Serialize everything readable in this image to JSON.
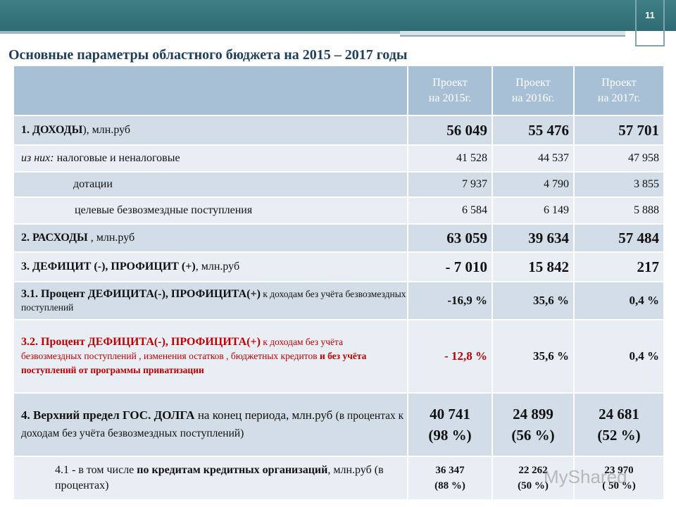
{
  "page_number": "11",
  "title": "Основные параметры областного бюджета  на 2015 – 2017 годы",
  "columns": [
    {
      "line1": "Проект",
      "line2": "на 2015г."
    },
    {
      "line1": "Проект",
      "line2": "на 2016г."
    },
    {
      "line1": "Проект",
      "line2": "на 2017г."
    }
  ],
  "rows": {
    "income": {
      "label_bold": "1. ДОХОДЫ",
      "label_rest": "), млн.руб",
      "values": [
        "56 049",
        "55 476",
        "57 701"
      ]
    },
    "tax": {
      "label_italic": "из них:",
      "label_rest": " налоговые и неналоговые",
      "values": [
        "41 528",
        "44 537",
        "47 958"
      ]
    },
    "grants": {
      "label": "дотации",
      "values": [
        "7 937",
        "4 790",
        "3 855"
      ]
    },
    "targeted": {
      "label": "целевые безвозмездные поступления",
      "values": [
        "6 584",
        "6 149",
        "5 888"
      ]
    },
    "expenses": {
      "label_bold": "2. РАСХОДЫ",
      "label_rest": " , млн.руб",
      "values": [
        "63 059",
        "39 634",
        "57 484"
      ]
    },
    "deficit": {
      "label_bold": "3. ДЕФИЦИТ (-), ПРОФИЦИТ (+)",
      "label_rest": ", млн.руб",
      "values": [
        "- 7 010",
        "15 842",
        "217"
      ]
    },
    "pct1": {
      "label_bold": "3.1. Процент ДЕФИЦИТА(-), ПРОФИЦИТА(+)",
      "label_small": " к доходам без учёта безвозмездных поступлений",
      "values": [
        "-16,9 %",
        "35,6 %",
        "0,4 %"
      ]
    },
    "pct2": {
      "label_bold": "3.2. Процент ДЕФИЦИТА(-), ПРОФИЦИТА(+)",
      "label_small": " к доходам без учёта безвозмездных поступлений , изменения остатков , бюджетных кредитов ",
      "label_bold_tail": " и без учёта поступлений от программы приватизации",
      "values": [
        "- 12,8 %",
        "35,6 %",
        "0,4 %"
      ]
    },
    "debt": {
      "label_bold": "4. Верхний предел ГОС. ДОЛГА",
      "label_rest": "  на конец периода, млн.руб ",
      "label_small": "(в процентах  к доходам без учёта безвозмездных поступлений)",
      "values": [
        [
          "40 741",
          "(98 %)"
        ],
        [
          "24 899",
          "(56 %)"
        ],
        [
          "24 681",
          "(52 %)"
        ]
      ]
    },
    "credit": {
      "label_pre": "4.1 - ",
      "label_mid": " в том числе ",
      "label_bold": "по кредитам кредитных организаций",
      "label_rest": ", млн.руб (в процентах)",
      "values": [
        [
          "36 347",
          "(88 %)"
        ],
        [
          "22 262",
          "(50 %)"
        ],
        [
          "23 970",
          "( 50 %)"
        ]
      ]
    }
  },
  "watermark": "MyShared",
  "colors": {
    "header_bg": "#a8c0d6",
    "row_shade": "#d2dde8",
    "row_light": "#e8eef4",
    "title": "#1e3f5c",
    "accent_red": "#c00000",
    "band": "#2f6b72"
  }
}
